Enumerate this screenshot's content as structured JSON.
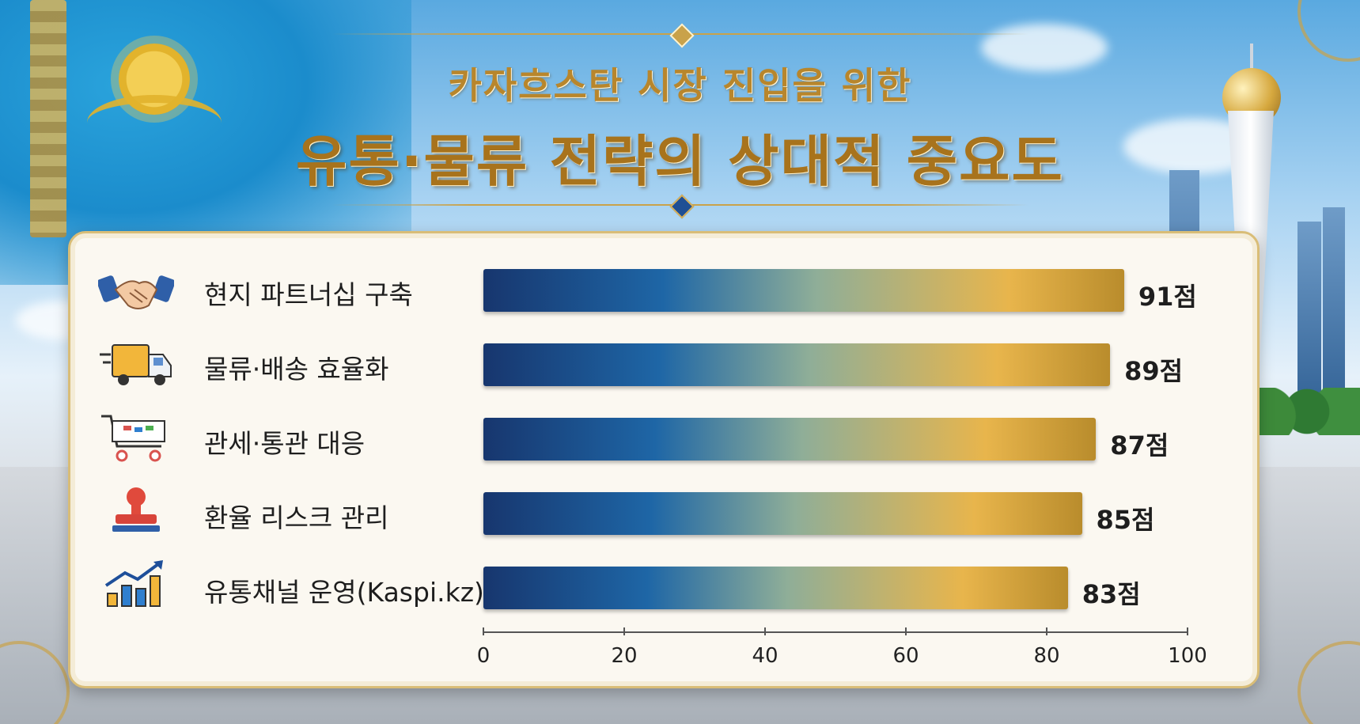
{
  "title": {
    "line1": "카자흐스탄 시장 진입을 위한",
    "line2": "유통·물류 전략의 상대적 중요도"
  },
  "icons": [
    "handshake-icon",
    "delivery-truck-icon",
    "shopping-cart-icon",
    "stamp-icon",
    "growth-chart-icon"
  ],
  "colors": {
    "bar_start": "#17366e",
    "bar_mid": "#1e66a6",
    "bar_end": "#e8b54c",
    "title_gold": "#a8731c",
    "panel_bg": "#fbf8f1"
  },
  "chart_data": {
    "type": "bar",
    "orientation": "horizontal",
    "title": "유통·물류 전략의 상대적 중요도",
    "categories": [
      "현지 파트너십 구축",
      "물류·배송 효율화",
      "관세·통관 대응",
      "환율 리스크 관리",
      "유통채널 운영(Kaspi.kz)"
    ],
    "values": [
      91,
      89,
      87,
      85,
      83
    ],
    "value_labels": [
      "91점",
      "89점",
      "87점",
      "85점",
      "83점"
    ],
    "xlim": [
      0,
      100
    ],
    "xticks": [
      "0",
      "20",
      "40",
      "60",
      "80",
      "100"
    ],
    "grid": false
  }
}
